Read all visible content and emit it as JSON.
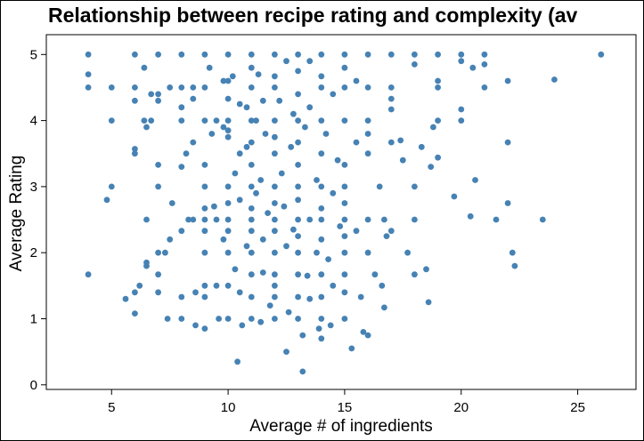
{
  "chart_data": {
    "type": "scatter",
    "title": "Relationship between recipe rating and complexity (av",
    "xlabel": "Average # of ingredients",
    "ylabel": "Average Rating",
    "xlim": [
      2.2,
      27.5
    ],
    "ylim": [
      -0.07,
      5.3
    ],
    "xticks": [
      5,
      10,
      15,
      20,
      25
    ],
    "yticks": [
      0,
      1,
      2,
      3,
      4,
      5
    ],
    "grid": false,
    "colors": {
      "points": "#4682B4",
      "axes": "#000000",
      "background": "#ffffff"
    },
    "points": [
      [
        4.0,
        5.0
      ],
      [
        4.0,
        4.7
      ],
      [
        4.0,
        4.5
      ],
      [
        4.0,
        1.67
      ],
      [
        5.0,
        4.5
      ],
      [
        5.0,
        4.0
      ],
      [
        5.0,
        3.0
      ],
      [
        4.8,
        2.8
      ],
      [
        5.6,
        1.3
      ],
      [
        6.0,
        5.0
      ],
      [
        6.0,
        4.5
      ],
      [
        6.0,
        4.3
      ],
      [
        6.0,
        3.57
      ],
      [
        6.0,
        3.5
      ],
      [
        6.0,
        1.4
      ],
      [
        6.0,
        1.08
      ],
      [
        6.2,
        1.5
      ],
      [
        6.4,
        4.8
      ],
      [
        6.4,
        4.0
      ],
      [
        6.5,
        3.9
      ],
      [
        6.5,
        2.5
      ],
      [
        6.5,
        1.85
      ],
      [
        6.5,
        1.8
      ],
      [
        6.7,
        4.4
      ],
      [
        6.7,
        4.0
      ],
      [
        7.0,
        5.0
      ],
      [
        7.0,
        4.4
      ],
      [
        7.0,
        4.3
      ],
      [
        7.0,
        3.33
      ],
      [
        7.0,
        3.0
      ],
      [
        7.0,
        2.0
      ],
      [
        7.0,
        1.67
      ],
      [
        7.0,
        1.4
      ],
      [
        7.3,
        2.0
      ],
      [
        7.4,
        1.0
      ],
      [
        7.5,
        4.5
      ],
      [
        7.5,
        2.2
      ],
      [
        7.6,
        2.75
      ],
      [
        8.0,
        5.0
      ],
      [
        8.0,
        4.5
      ],
      [
        8.0,
        4.2
      ],
      [
        8.0,
        4.0
      ],
      [
        8.0,
        3.3
      ],
      [
        8.0,
        2.33
      ],
      [
        8.0,
        1.33
      ],
      [
        8.0,
        1.0
      ],
      [
        8.2,
        3.5
      ],
      [
        8.3,
        2.5
      ],
      [
        8.5,
        4.5
      ],
      [
        8.5,
        4.33
      ],
      [
        8.5,
        3.67
      ],
      [
        8.5,
        2.5
      ],
      [
        8.6,
        1.4
      ],
      [
        8.6,
        0.9
      ],
      [
        9.0,
        5.0
      ],
      [
        9.0,
        4.5
      ],
      [
        9.0,
        4.0
      ],
      [
        9.0,
        3.33
      ],
      [
        9.0,
        3.0
      ],
      [
        9.0,
        2.67
      ],
      [
        9.0,
        2.5
      ],
      [
        9.0,
        2.33
      ],
      [
        9.0,
        2.0
      ],
      [
        9.0,
        1.5
      ],
      [
        9.0,
        1.33
      ],
      [
        9.0,
        0.85
      ],
      [
        9.2,
        4.8
      ],
      [
        9.3,
        3.8
      ],
      [
        9.4,
        2.7
      ],
      [
        9.5,
        4.0
      ],
      [
        9.5,
        2.5
      ],
      [
        9.5,
        1.5
      ],
      [
        9.6,
        1.0
      ],
      [
        9.8,
        4.6
      ],
      [
        9.8,
        3.9
      ],
      [
        9.8,
        2.2
      ],
      [
        10.0,
        5.0
      ],
      [
        10.0,
        4.6
      ],
      [
        10.0,
        4.33
      ],
      [
        10.0,
        4.0
      ],
      [
        10.0,
        3.85
      ],
      [
        10.0,
        3.75
      ],
      [
        10.0,
        3.0
      ],
      [
        10.0,
        2.75
      ],
      [
        10.0,
        2.5
      ],
      [
        10.0,
        2.33
      ],
      [
        10.0,
        2.0
      ],
      [
        10.0,
        1.5
      ],
      [
        10.0,
        1.0
      ],
      [
        10.2,
        4.67
      ],
      [
        10.3,
        3.2
      ],
      [
        10.3,
        1.75
      ],
      [
        10.4,
        0.35
      ],
      [
        10.5,
        4.25
      ],
      [
        10.5,
        3.5
      ],
      [
        10.5,
        2.8
      ],
      [
        10.5,
        1.4
      ],
      [
        10.6,
        0.9
      ],
      [
        10.8,
        4.2
      ],
      [
        10.8,
        3.6
      ],
      [
        10.8,
        2.1
      ],
      [
        11.0,
        5.0
      ],
      [
        11.0,
        4.8
      ],
      [
        11.0,
        4.5
      ],
      [
        11.0,
        4.0
      ],
      [
        11.0,
        3.67
      ],
      [
        11.0,
        3.33
      ],
      [
        11.0,
        3.0
      ],
      [
        11.0,
        2.67
      ],
      [
        11.0,
        2.5
      ],
      [
        11.0,
        2.33
      ],
      [
        11.0,
        2.0
      ],
      [
        11.0,
        1.67
      ],
      [
        11.0,
        1.33
      ],
      [
        11.0,
        1.0
      ],
      [
        11.2,
        4.0
      ],
      [
        11.2,
        2.9
      ],
      [
        11.3,
        4.7
      ],
      [
        11.4,
        3.1
      ],
      [
        11.4,
        0.95
      ],
      [
        11.5,
        4.3
      ],
      [
        11.5,
        2.2
      ],
      [
        11.5,
        1.7
      ],
      [
        11.6,
        3.8
      ],
      [
        11.7,
        2.6
      ],
      [
        11.8,
        1.2
      ],
      [
        12.0,
        5.0
      ],
      [
        12.0,
        4.67
      ],
      [
        12.0,
        4.5
      ],
      [
        12.0,
        4.0
      ],
      [
        12.0,
        3.75
      ],
      [
        12.0,
        3.5
      ],
      [
        12.0,
        3.0
      ],
      [
        12.0,
        2.75
      ],
      [
        12.0,
        2.5
      ],
      [
        12.0,
        2.33
      ],
      [
        12.0,
        2.0
      ],
      [
        12.0,
        1.67
      ],
      [
        12.0,
        1.5
      ],
      [
        12.0,
        1.33
      ],
      [
        12.0,
        1.0
      ],
      [
        12.2,
        4.3
      ],
      [
        12.3,
        3.2
      ],
      [
        12.4,
        2.7
      ],
      [
        12.5,
        0.5
      ],
      [
        12.5,
        4.9
      ],
      [
        12.5,
        2.1
      ],
      [
        12.6,
        1.1
      ],
      [
        12.7,
        3.6
      ],
      [
        12.8,
        4.1
      ],
      [
        12.8,
        2.35
      ],
      [
        13.0,
        5.0
      ],
      [
        13.0,
        4.75
      ],
      [
        13.0,
        4.4
      ],
      [
        13.0,
        4.0
      ],
      [
        13.0,
        3.67
      ],
      [
        13.0,
        3.33
      ],
      [
        13.0,
        3.0
      ],
      [
        13.0,
        2.8
      ],
      [
        13.0,
        2.5
      ],
      [
        13.0,
        2.25
      ],
      [
        13.0,
        2.0
      ],
      [
        13.0,
        1.67
      ],
      [
        13.0,
        1.33
      ],
      [
        13.0,
        1.0
      ],
      [
        13.2,
        0.2
      ],
      [
        13.2,
        0.75
      ],
      [
        13.3,
        3.9
      ],
      [
        13.4,
        1.65
      ],
      [
        13.5,
        4.9
      ],
      [
        13.5,
        4.2
      ],
      [
        13.5,
        2.5
      ],
      [
        13.5,
        1.3
      ],
      [
        13.8,
        3.1
      ],
      [
        13.8,
        2.0
      ],
      [
        13.9,
        0.85
      ],
      [
        14.0,
        5.0
      ],
      [
        14.0,
        4.67
      ],
      [
        14.0,
        4.5
      ],
      [
        14.0,
        4.0
      ],
      [
        14.0,
        3.5
      ],
      [
        14.0,
        3.0
      ],
      [
        14.0,
        2.67
      ],
      [
        14.0,
        2.5
      ],
      [
        14.0,
        2.2
      ],
      [
        14.0,
        1.67
      ],
      [
        14.0,
        1.33
      ],
      [
        14.0,
        1.0
      ],
      [
        14.0,
        0.7
      ],
      [
        14.2,
        3.8
      ],
      [
        14.3,
        1.9
      ],
      [
        14.4,
        0.9
      ],
      [
        14.5,
        4.4
      ],
      [
        14.5,
        2.9
      ],
      [
        14.5,
        1.5
      ],
      [
        14.7,
        3.4
      ],
      [
        14.8,
        2.4
      ],
      [
        15.0,
        5.0
      ],
      [
        15.0,
        4.8
      ],
      [
        15.0,
        4.5
      ],
      [
        15.0,
        4.0
      ],
      [
        15.0,
        3.33
      ],
      [
        15.0,
        3.0
      ],
      [
        15.0,
        2.75
      ],
      [
        15.0,
        2.5
      ],
      [
        15.0,
        2.25
      ],
      [
        15.0,
        2.0
      ],
      [
        15.0,
        1.67
      ],
      [
        15.0,
        1.4
      ],
      [
        15.0,
        1.0
      ],
      [
        15.3,
        0.55
      ],
      [
        15.5,
        4.6
      ],
      [
        15.5,
        3.67
      ],
      [
        15.5,
        2.33
      ],
      [
        15.7,
        1.33
      ],
      [
        15.8,
        0.8
      ],
      [
        16.0,
        5.0
      ],
      [
        16.0,
        4.5
      ],
      [
        16.0,
        4.0
      ],
      [
        16.0,
        3.8
      ],
      [
        16.0,
        3.5
      ],
      [
        16.0,
        2.5
      ],
      [
        16.0,
        2.0
      ],
      [
        16.0,
        0.75
      ],
      [
        16.3,
        1.67
      ],
      [
        16.5,
        3.0
      ],
      [
        16.6,
        1.5
      ],
      [
        16.7,
        1.17
      ],
      [
        16.7,
        2.5
      ],
      [
        16.8,
        2.25
      ],
      [
        17.0,
        5.0
      ],
      [
        17.0,
        4.5
      ],
      [
        17.0,
        4.33
      ],
      [
        17.0,
        4.17
      ],
      [
        17.0,
        3.67
      ],
      [
        17.0,
        2.33
      ],
      [
        17.4,
        3.7
      ],
      [
        17.5,
        3.4
      ],
      [
        17.7,
        2.0
      ],
      [
        18.0,
        5.0
      ],
      [
        18.0,
        4.85
      ],
      [
        18.0,
        3.0
      ],
      [
        18.0,
        2.5
      ],
      [
        18.0,
        1.67
      ],
      [
        18.3,
        3.6
      ],
      [
        18.5,
        1.75
      ],
      [
        18.6,
        1.25
      ],
      [
        18.7,
        3.3
      ],
      [
        18.8,
        3.9
      ],
      [
        19.0,
        5.0
      ],
      [
        19.0,
        4.6
      ],
      [
        19.0,
        4.5
      ],
      [
        19.0,
        4.0
      ],
      [
        19.0,
        3.44
      ],
      [
        19.7,
        2.85
      ],
      [
        20.0,
        5.0
      ],
      [
        20.0,
        4.9
      ],
      [
        20.0,
        4.17
      ],
      [
        20.0,
        4.0
      ],
      [
        20.4,
        2.55
      ],
      [
        20.5,
        4.8
      ],
      [
        20.6,
        3.1
      ],
      [
        21.0,
        5.0
      ],
      [
        21.0,
        4.85
      ],
      [
        21.0,
        4.5
      ],
      [
        21.5,
        2.5
      ],
      [
        22.0,
        4.6
      ],
      [
        22.0,
        3.67
      ],
      [
        22.0,
        2.75
      ],
      [
        22.2,
        2.0
      ],
      [
        22.3,
        1.8
      ],
      [
        23.5,
        2.5
      ],
      [
        24.0,
        4.62
      ],
      [
        26.0,
        5.0
      ]
    ]
  }
}
